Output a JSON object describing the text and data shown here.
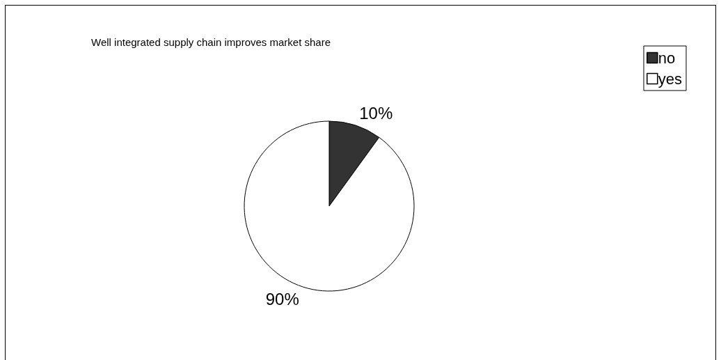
{
  "chart_data": {
    "type": "pie",
    "title": "Well integrated supply chain improves market share",
    "categories": [
      "no",
      "yes"
    ],
    "values": [
      10,
      90
    ],
    "colors": [
      "#333333",
      "#ffffff"
    ],
    "value_labels": [
      "10%",
      "90%"
    ],
    "legend": "top right"
  }
}
